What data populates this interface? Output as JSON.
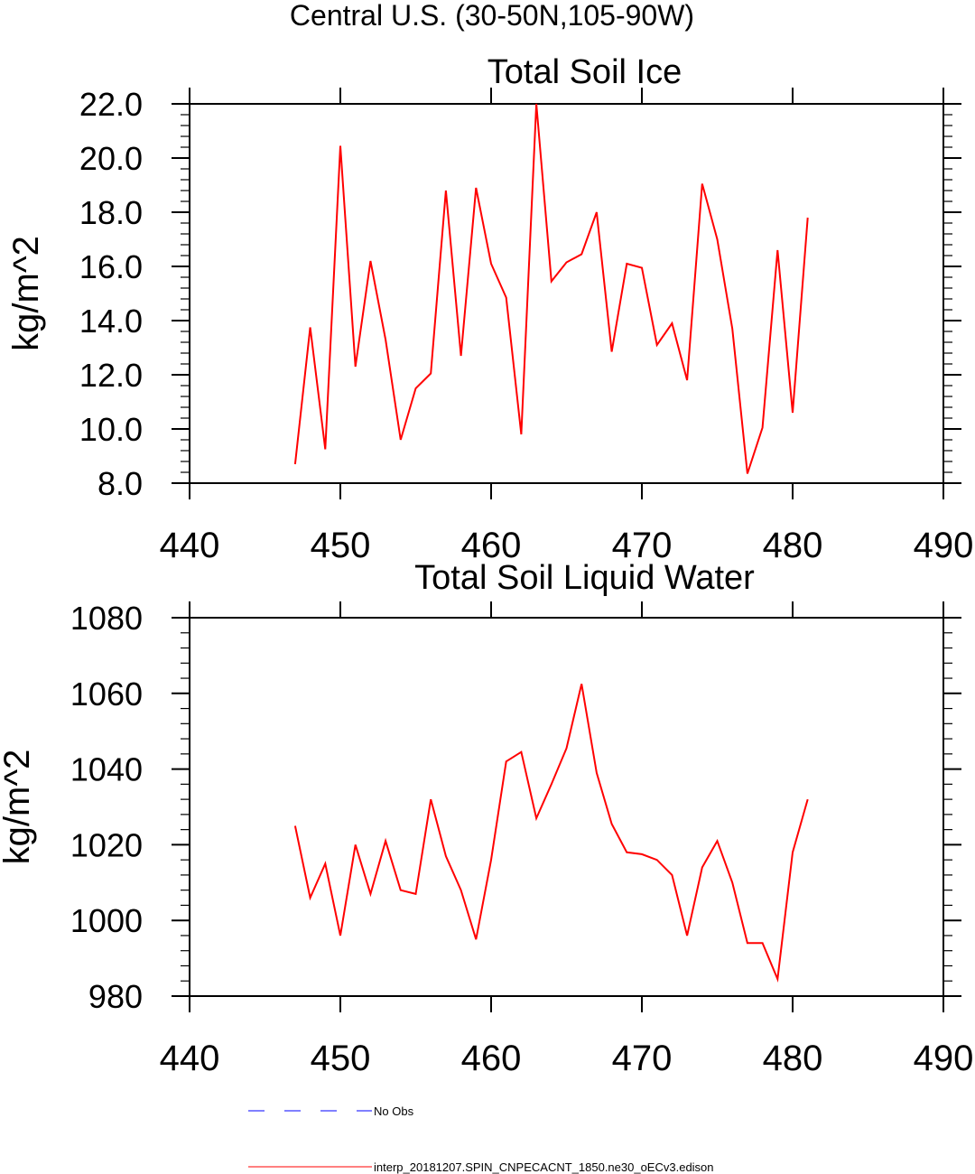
{
  "figure": {
    "main_title": "Central U.S. (30-50N,105-90W)"
  },
  "chart_data": [
    {
      "type": "line",
      "title": "Total Soil Ice",
      "xlabel": "",
      "ylabel": "kg/m^2",
      "xlim": [
        440,
        490
      ],
      "ylim": [
        8,
        22
      ],
      "x_ticks": [
        440,
        450,
        460,
        470,
        480,
        490
      ],
      "x_tick_labels": [
        "440",
        "450",
        "460",
        "470",
        "480",
        "490"
      ],
      "y_ticks": [
        8,
        10,
        12,
        14,
        16,
        18,
        20,
        22
      ],
      "y_tick_labels": [
        "8.0",
        "10.0",
        "12.0",
        "14.0",
        "16.0",
        "18.0",
        "20.0",
        "22.0"
      ],
      "x": [
        447,
        448,
        449,
        450,
        451,
        452,
        453,
        454,
        455,
        456,
        457,
        458,
        459,
        460,
        461,
        462,
        463,
        464,
        465,
        466,
        467,
        468,
        469,
        470,
        471,
        472,
        473,
        474,
        475,
        476,
        477,
        478,
        479,
        480,
        481
      ],
      "series": [
        {
          "name": "interp_20181207.SPIN_CNPECACNT_1850.ne30_oECv3.edison",
          "color": "#ff0000",
          "values": [
            8.7,
            13.75,
            9.25,
            20.45,
            12.3,
            16.2,
            13.3,
            9.6,
            11.5,
            12.05,
            18.8,
            12.7,
            18.9,
            16.1,
            14.85,
            9.8,
            22.0,
            15.45,
            16.15,
            16.45,
            18.0,
            12.85,
            16.1,
            15.95,
            13.1,
            13.9,
            11.8,
            19.05,
            17.0,
            13.7,
            8.35,
            10.05,
            16.6,
            10.6,
            17.8
          ]
        }
      ]
    },
    {
      "type": "line",
      "title": "Total Soil Liquid Water",
      "xlabel": "",
      "ylabel": "kg/m^2",
      "xlim": [
        440,
        490
      ],
      "ylim": [
        980,
        1080
      ],
      "x_ticks": [
        440,
        450,
        460,
        470,
        480,
        490
      ],
      "x_tick_labels": [
        "440",
        "450",
        "460",
        "470",
        "480",
        "490"
      ],
      "y_ticks": [
        980,
        1000,
        1020,
        1040,
        1060,
        1080
      ],
      "y_tick_labels": [
        "980",
        "1000",
        "1020",
        "1040",
        "1060",
        "1080"
      ],
      "x": [
        447,
        448,
        449,
        450,
        451,
        452,
        453,
        454,
        455,
        456,
        457,
        458,
        459,
        460,
        461,
        462,
        463,
        464,
        465,
        466,
        467,
        468,
        469,
        470,
        471,
        472,
        473,
        474,
        475,
        476,
        477,
        478,
        479,
        480,
        481
      ],
      "series": [
        {
          "name": "interp_20181207.SPIN_CNPECACNT_1850.ne30_oECv3.edison",
          "color": "#ff0000",
          "values": [
            1025,
            1006,
            1015,
            996,
            1020,
            1007,
            1021,
            1008,
            1007,
            1032,
            1017,
            1008,
            995,
            1016,
            1042,
            1044.5,
            1027,
            1036,
            1045.5,
            1062.5,
            1039,
            1025.5,
            1018,
            1017.5,
            1016,
            1012,
            996,
            1014,
            1021,
            1010,
            994,
            994,
            984.5,
            1018,
            1032
          ]
        }
      ]
    }
  ],
  "legend": {
    "items": [
      {
        "label": "No Obs",
        "color": "#0000ff",
        "style": "dashed"
      },
      {
        "label": "interp_20181207.SPIN_CNPECACNT_1850.ne30_oECv3.edison",
        "color": "#ff0000",
        "style": "solid"
      }
    ]
  }
}
